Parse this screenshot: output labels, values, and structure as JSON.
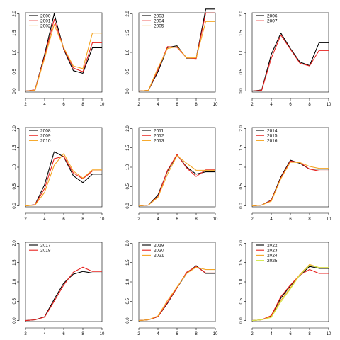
{
  "chart_data": [
    {
      "type": "line",
      "x": [
        2,
        3,
        4,
        5,
        6,
        7,
        8,
        9,
        10
      ],
      "xlim": [
        2,
        10
      ],
      "ylim": [
        0,
        2
      ],
      "xticks": [
        2,
        4,
        6,
        8,
        10
      ],
      "yticks": [
        0.0,
        0.5,
        1.0,
        1.5,
        2.0
      ],
      "ytick_labels": [
        "0.0",
        "0.5",
        "1.0",
        "1.5",
        "2.0"
      ],
      "series": [
        {
          "name": "2000",
          "color": "#000000",
          "values": [
            0.0,
            0.03,
            0.95,
            2.0,
            1.08,
            0.53,
            0.46,
            1.12,
            1.12
          ]
        },
        {
          "name": "2001",
          "color": "#e8221f",
          "values": [
            0.0,
            0.03,
            0.9,
            1.85,
            1.1,
            0.6,
            0.5,
            1.25,
            1.25
          ]
        },
        {
          "name": "2002",
          "color": "#f5a623",
          "values": [
            0.0,
            0.02,
            0.85,
            1.72,
            1.12,
            0.65,
            0.58,
            1.5,
            1.5
          ]
        }
      ]
    },
    {
      "type": "line",
      "x": [
        2,
        3,
        4,
        5,
        6,
        7,
        8,
        9,
        10
      ],
      "xlim": [
        2,
        10
      ],
      "ylim": [
        0,
        2
      ],
      "xticks": [
        2,
        4,
        6,
        8,
        10
      ],
      "yticks": [
        0.0,
        0.5,
        1.0,
        1.5,
        2.0
      ],
      "ytick_labels": [
        "0.0",
        "0.5",
        "1.0",
        "1.5",
        "2.0"
      ],
      "series": [
        {
          "name": "2003",
          "color": "#000000",
          "values": [
            0.0,
            0.02,
            0.5,
            1.13,
            1.17,
            0.85,
            0.85,
            2.12,
            2.12
          ]
        },
        {
          "name": "2004",
          "color": "#e8221f",
          "values": [
            0.0,
            0.02,
            0.55,
            1.15,
            1.13,
            0.86,
            0.84,
            2.02,
            2.02
          ]
        },
        {
          "name": "2005",
          "color": "#f5a623",
          "values": [
            0.0,
            0.02,
            0.6,
            1.1,
            1.15,
            0.86,
            0.86,
            1.8,
            1.8
          ]
        }
      ]
    },
    {
      "type": "line",
      "x": [
        2,
        3,
        4,
        5,
        6,
        7,
        8,
        9,
        10
      ],
      "xlim": [
        2,
        10
      ],
      "ylim": [
        0,
        2
      ],
      "xticks": [
        2,
        4,
        6,
        8,
        10
      ],
      "yticks": [
        0.0,
        0.5,
        1.0,
        1.5,
        2.0
      ],
      "ytick_labels": [
        "0.0",
        "0.5",
        "1.0",
        "1.5",
        "2.0"
      ],
      "series": [
        {
          "name": "2006",
          "color": "#000000",
          "values": [
            0.0,
            0.03,
            0.95,
            1.5,
            1.1,
            0.75,
            0.66,
            1.25,
            1.25
          ]
        },
        {
          "name": "2007",
          "color": "#e8221f",
          "values": [
            0.0,
            0.02,
            0.85,
            1.45,
            1.08,
            0.72,
            0.65,
            1.05,
            1.05
          ]
        }
      ]
    },
    {
      "type": "line",
      "x": [
        2,
        3,
        4,
        5,
        6,
        7,
        8,
        9,
        10
      ],
      "xlim": [
        2,
        10
      ],
      "ylim": [
        0,
        2
      ],
      "xticks": [
        2,
        4,
        6,
        8,
        10
      ],
      "yticks": [
        0.0,
        0.5,
        1.0,
        1.5,
        2.0
      ],
      "ytick_labels": [
        "0.0",
        "0.5",
        "1.0",
        "1.5",
        "2.0"
      ],
      "series": [
        {
          "name": "2008",
          "color": "#000000",
          "values": [
            0.0,
            0.03,
            0.55,
            1.4,
            1.27,
            0.78,
            0.6,
            0.82,
            0.82
          ]
        },
        {
          "name": "2009",
          "color": "#e8221f",
          "values": [
            0.0,
            0.03,
            0.45,
            1.22,
            1.28,
            0.85,
            0.7,
            0.9,
            0.9
          ]
        },
        {
          "name": "2010",
          "color": "#f5a623",
          "values": [
            0.0,
            0.02,
            0.35,
            1.05,
            1.35,
            0.9,
            0.72,
            0.93,
            0.93
          ]
        }
      ]
    },
    {
      "type": "line",
      "x": [
        2,
        3,
        4,
        5,
        6,
        7,
        8,
        9,
        10
      ],
      "xlim": [
        2,
        10
      ],
      "ylim": [
        0,
        2
      ],
      "xticks": [
        2,
        4,
        6,
        8,
        10
      ],
      "yticks": [
        0.0,
        0.5,
        1.0,
        1.5,
        2.0
      ],
      "ytick_labels": [
        "0.0",
        "0.5",
        "1.0",
        "1.5",
        "2.0"
      ],
      "series": [
        {
          "name": "2011",
          "color": "#000000",
          "values": [
            0.0,
            0.02,
            0.28,
            0.9,
            1.32,
            1.0,
            0.82,
            0.88,
            0.88
          ]
        },
        {
          "name": "2012",
          "color": "#e8221f",
          "values": [
            0.0,
            0.02,
            0.24,
            0.92,
            1.33,
            0.98,
            0.76,
            0.93,
            0.93
          ]
        },
        {
          "name": "2013",
          "color": "#f5a623",
          "values": [
            0.0,
            0.02,
            0.22,
            0.82,
            1.3,
            1.1,
            0.92,
            0.92,
            0.92
          ]
        }
      ]
    },
    {
      "type": "line",
      "x": [
        2,
        3,
        4,
        5,
        6,
        7,
        8,
        9,
        10
      ],
      "xlim": [
        2,
        10
      ],
      "ylim": [
        0,
        2
      ],
      "xticks": [
        2,
        4,
        6,
        8,
        10
      ],
      "yticks": [
        0.0,
        0.5,
        1.0,
        1.5,
        2.0
      ],
      "ytick_labels": [
        "0.0",
        "0.5",
        "1.0",
        "1.5",
        "2.0"
      ],
      "series": [
        {
          "name": "2014",
          "color": "#000000",
          "values": [
            0.0,
            0.02,
            0.15,
            0.75,
            1.18,
            1.1,
            0.95,
            0.95,
            0.95
          ]
        },
        {
          "name": "2015",
          "color": "#e8221f",
          "values": [
            0.0,
            0.02,
            0.14,
            0.72,
            1.16,
            1.12,
            0.95,
            0.9,
            0.9
          ]
        },
        {
          "name": "2016",
          "color": "#f5a623",
          "values": [
            0.0,
            0.02,
            0.12,
            0.7,
            1.13,
            1.12,
            1.02,
            0.97,
            0.97
          ]
        }
      ]
    },
    {
      "type": "line",
      "x": [
        2,
        3,
        4,
        5,
        6,
        7,
        8,
        9,
        10
      ],
      "xlim": [
        2,
        10
      ],
      "ylim": [
        0,
        2
      ],
      "xticks": [
        2,
        4,
        6,
        8,
        10
      ],
      "yticks": [
        0.0,
        0.5,
        1.0,
        1.5,
        2.0
      ],
      "ytick_labels": [
        "0.0",
        "0.5",
        "1.0",
        "1.5",
        "2.0"
      ],
      "series": [
        {
          "name": "2017",
          "color": "#000000",
          "values": [
            0.0,
            0.02,
            0.1,
            0.55,
            0.97,
            1.2,
            1.27,
            1.23,
            1.23
          ]
        },
        {
          "name": "2018",
          "color": "#e8221f",
          "values": [
            0.0,
            0.02,
            0.09,
            0.5,
            0.92,
            1.25,
            1.38,
            1.27,
            1.27
          ]
        }
      ]
    },
    {
      "type": "line",
      "x": [
        2,
        3,
        4,
        5,
        6,
        7,
        8,
        9,
        10
      ],
      "xlim": [
        2,
        10
      ],
      "ylim": [
        0,
        2
      ],
      "xticks": [
        2,
        4,
        6,
        8,
        10
      ],
      "yticks": [
        0.0,
        0.5,
        1.0,
        1.5,
        2.0
      ],
      "ytick_labels": [
        "0.0",
        "0.5",
        "1.0",
        "1.5",
        "2.0"
      ],
      "series": [
        {
          "name": "2019",
          "color": "#000000",
          "values": [
            0.0,
            0.02,
            0.1,
            0.45,
            0.85,
            1.22,
            1.42,
            1.22,
            1.22
          ]
        },
        {
          "name": "2020",
          "color": "#e8221f",
          "values": [
            0.0,
            0.02,
            0.1,
            0.47,
            0.85,
            1.25,
            1.4,
            1.23,
            1.23
          ]
        },
        {
          "name": "2021",
          "color": "#f5a623",
          "values": [
            0.0,
            0.02,
            0.12,
            0.52,
            0.87,
            1.22,
            1.38,
            1.32,
            1.32
          ]
        }
      ]
    },
    {
      "type": "line",
      "x": [
        2,
        3,
        4,
        5,
        6,
        7,
        8,
        9,
        10
      ],
      "xlim": [
        2,
        10
      ],
      "ylim": [
        0,
        2
      ],
      "xticks": [
        2,
        4,
        6,
        8,
        10
      ],
      "yticks": [
        0.0,
        0.5,
        1.0,
        1.5,
        2.0
      ],
      "ytick_labels": [
        "0.0",
        "0.5",
        "1.0",
        "1.5",
        "2.0"
      ],
      "series": [
        {
          "name": "2022",
          "color": "#000000",
          "values": [
            0.0,
            0.02,
            0.12,
            0.58,
            0.9,
            1.17,
            1.4,
            1.35,
            1.35
          ]
        },
        {
          "name": "2023",
          "color": "#e8221f",
          "values": [
            0.0,
            0.02,
            0.13,
            0.62,
            0.92,
            1.18,
            1.32,
            1.22,
            1.22
          ]
        },
        {
          "name": "2024",
          "color": "#f5a623",
          "values": [
            0.0,
            0.02,
            0.1,
            0.52,
            0.85,
            1.2,
            1.45,
            1.37,
            1.37
          ]
        },
        {
          "name": "2025",
          "color": "#d4e84c",
          "values": [
            0.0,
            0.02,
            0.08,
            0.48,
            0.82,
            1.18,
            1.43,
            1.37,
            1.37
          ]
        }
      ]
    }
  ]
}
